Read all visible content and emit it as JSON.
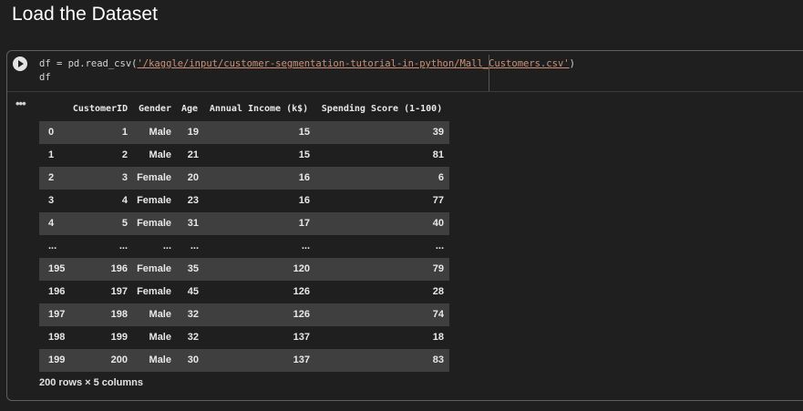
{
  "header": {
    "title": "Load the Dataset"
  },
  "code": {
    "line1": [
      "df = pd.read_csv(",
      "'/kaggle/input/customer-segmentation-tutorial-in-python/Mall_Customers.csv'",
      ")"
    ],
    "line2": "df"
  },
  "output": {
    "marker": "•••"
  },
  "table": {
    "columns": [
      "CustomerID",
      "Gender",
      "Age",
      "Annual Income (k$)",
      "Spending Score (1-100)"
    ],
    "rows": [
      [
        "0",
        1,
        "Male",
        19,
        15,
        39
      ],
      [
        "1",
        2,
        "Male",
        21,
        15,
        81
      ],
      [
        "2",
        3,
        "Female",
        20,
        16,
        6
      ],
      [
        "3",
        4,
        "Female",
        23,
        16,
        77
      ],
      [
        "4",
        5,
        "Female",
        31,
        17,
        40
      ],
      [
        "...",
        "...",
        "...",
        "...",
        "...",
        "..."
      ],
      [
        "195",
        196,
        "Female",
        35,
        120,
        79
      ],
      [
        "196",
        197,
        "Female",
        45,
        126,
        28
      ],
      [
        "197",
        198,
        "Male",
        32,
        126,
        74
      ],
      [
        "198",
        199,
        "Male",
        32,
        137,
        18
      ],
      [
        "199",
        200,
        "Male",
        30,
        137,
        83
      ]
    ],
    "footer": "200 rows × 5 columns"
  }
}
